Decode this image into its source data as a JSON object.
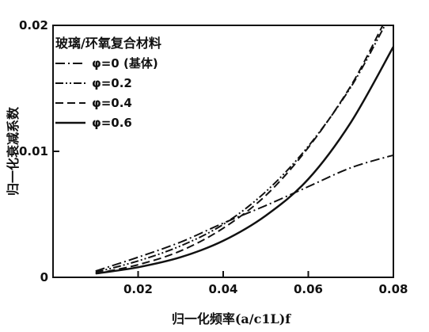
{
  "chart_data": {
    "type": "line",
    "title": "玻璃/环氧复合材料",
    "xlabel": "归一化频率(a/c1L)f",
    "ylabel": "归一化衰减系数",
    "xlim": [
      0.0,
      0.08
    ],
    "ylim": [
      0.0,
      0.02
    ],
    "x_ticks": [
      "0.02",
      "0.04",
      "0.06",
      "0.08"
    ],
    "y_ticks": [
      "0",
      "0.01",
      "0.02"
    ],
    "legend_position": "top-left",
    "grid": false,
    "series": [
      {
        "name": "φ=0 (基体)",
        "style": "dash-dot",
        "x": [
          0.01,
          0.02,
          0.03,
          0.04,
          0.05,
          0.06,
          0.07,
          0.08
        ],
        "y": [
          0.0005,
          0.0016,
          0.0028,
          0.0043,
          0.0057,
          0.0072,
          0.0087,
          0.0097
        ]
      },
      {
        "name": "φ=0.2",
        "style": "dash-dot-dot",
        "x": [
          0.01,
          0.02,
          0.03,
          0.04,
          0.05,
          0.06,
          0.07,
          0.078
        ],
        "y": [
          0.0004,
          0.0013,
          0.0025,
          0.0042,
          0.0068,
          0.0104,
          0.0151,
          0.02
        ]
      },
      {
        "name": "φ=0.4",
        "style": "dash",
        "x": [
          0.01,
          0.02,
          0.03,
          0.04,
          0.05,
          0.06,
          0.07,
          0.0775
        ],
        "y": [
          0.0003,
          0.001,
          0.0021,
          0.0039,
          0.0065,
          0.0103,
          0.0152,
          0.02
        ]
      },
      {
        "name": "φ=0.6",
        "style": "solid",
        "x": [
          0.01,
          0.02,
          0.03,
          0.04,
          0.05,
          0.06,
          0.07,
          0.08
        ],
        "y": [
          0.0003,
          0.0008,
          0.0016,
          0.0029,
          0.0049,
          0.0078,
          0.0123,
          0.0183
        ]
      }
    ]
  }
}
